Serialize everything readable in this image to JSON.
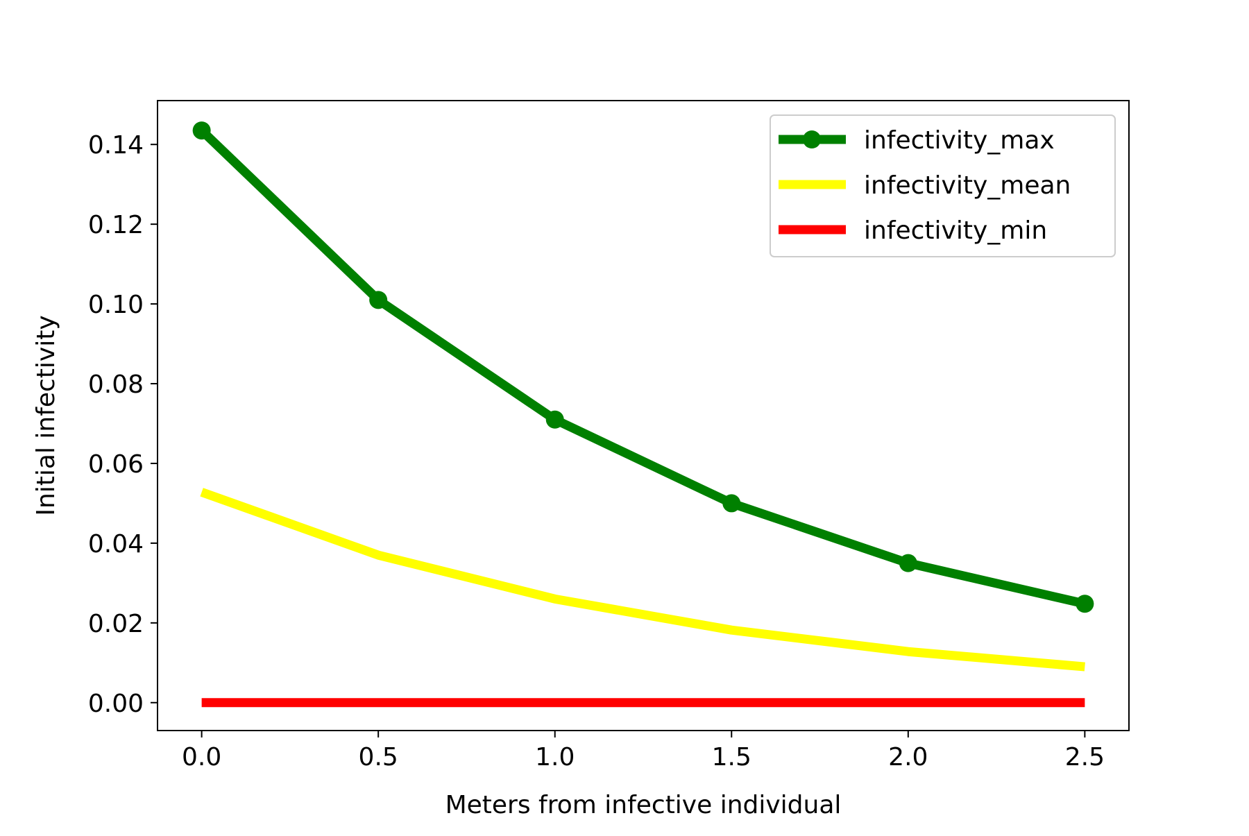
{
  "chart_data": {
    "type": "line",
    "title": "",
    "xlabel": "Meters from infective individual",
    "ylabel": "Initial infectivity",
    "x": [
      0.0,
      0.5,
      1.0,
      1.5,
      2.0,
      2.5
    ],
    "xlim": [
      -0.125,
      2.625
    ],
    "ylim": [
      -0.007,
      0.151
    ],
    "xticks": [
      0.0,
      0.5,
      1.0,
      1.5,
      2.0,
      2.5
    ],
    "xtick_labels": [
      "0.0",
      "0.5",
      "1.0",
      "1.5",
      "2.0",
      "2.5"
    ],
    "yticks": [
      0.0,
      0.02,
      0.04,
      0.06,
      0.08,
      0.1,
      0.12,
      0.14
    ],
    "ytick_labels": [
      "0.00",
      "0.02",
      "0.04",
      "0.06",
      "0.08",
      "0.10",
      "0.12",
      "0.14"
    ],
    "grid": false,
    "legend_position": "top-right",
    "series": [
      {
        "name": "infectivity_max",
        "values": [
          0.1435,
          0.101,
          0.071,
          0.05,
          0.035,
          0.0248
        ],
        "color": "#008000",
        "markers": true
      },
      {
        "name": "infectivity_mean",
        "values": [
          0.0528,
          0.037,
          0.026,
          0.0182,
          0.0128,
          0.009
        ],
        "color": "#ffff00",
        "markers": false
      },
      {
        "name": "infectivity_min",
        "values": [
          0.0,
          0.0,
          0.0,
          0.0,
          0.0,
          0.0
        ],
        "color": "#ff0000",
        "markers": false
      }
    ]
  }
}
